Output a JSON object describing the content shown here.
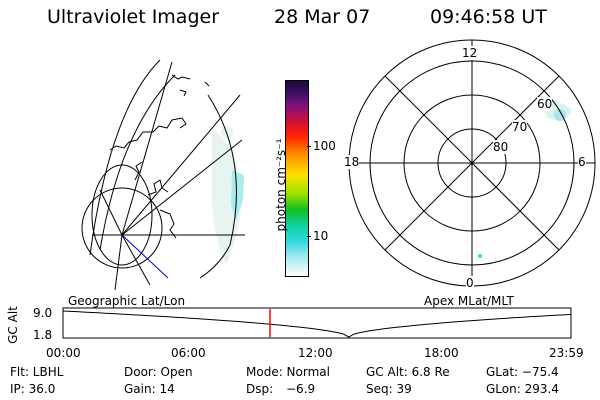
{
  "header": {
    "title": "Ultraviolet Imager",
    "date": "28 Mar 07",
    "time": "09:46:58 UT"
  },
  "colorbar": {
    "label": "photon cm⁻²s⁻¹",
    "ticks": [
      "100",
      "10"
    ]
  },
  "polar": {
    "mlt_labels": {
      "top": "12",
      "left": "18",
      "right": "6",
      "bottom": "0"
    },
    "lat_labels": [
      "60",
      "70",
      "80"
    ]
  },
  "panels": {
    "left_caption": "Geographic Lat/Lon",
    "right_caption": "Apex MLat/MLT"
  },
  "altitude_plot": {
    "ylabel": "GC Alt",
    "ymax": "9.0",
    "ymin": "1.8",
    "xticks": [
      "00:00",
      "06:00",
      "12:00",
      "18:00",
      "23:59"
    ],
    "current_time_hours": 9.78
  },
  "info": {
    "flt": "Flt: LBHL",
    "door": "Door: Open",
    "mode": "Mode: Normal",
    "gc_alt": "GC Alt: 6.8 Re",
    "glat": "GLat: −75.4",
    "ip": "IP: 36.0",
    "gain": "Gain: 14",
    "dsp_label": "Dsp:",
    "dsp_value": "−6.9",
    "seq": "Seq: 39",
    "glon": "GLon: 293.4"
  },
  "colors": {
    "time_marker": "#ff0000",
    "aurora": "#9fe8e8"
  }
}
